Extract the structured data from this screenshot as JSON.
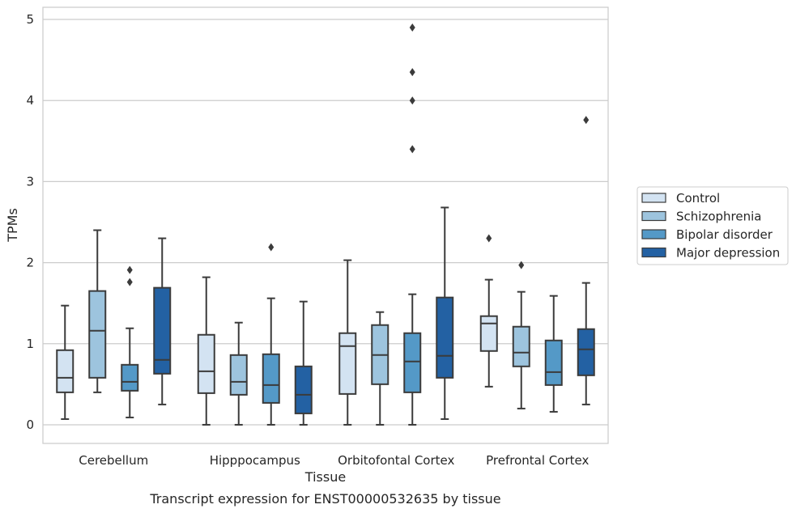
{
  "chart_data": {
    "type": "boxplot",
    "title": "",
    "xlabel": "Tissue",
    "ylabel": "TPMs",
    "caption": "Transcript expression for ENST00000532635 by tissue",
    "ylim": [
      -0.23,
      5.15
    ],
    "yticks": [
      0,
      1,
      2,
      3,
      4,
      5
    ],
    "grid": "horizontal",
    "legend_position": "right",
    "categories": [
      "Cerebellum",
      "Hipppocampus",
      "Orbitofontal Cortex",
      "Prefrontal Cortex"
    ],
    "series": [
      {
        "name": "Control",
        "color": "#d3e3f2",
        "boxes": [
          {
            "whisker_low": 0.07,
            "q1": 0.4,
            "median": 0.58,
            "q3": 0.92,
            "whisker_high": 1.47,
            "outliers": []
          },
          {
            "whisker_low": 0.0,
            "q1": 0.39,
            "median": 0.66,
            "q3": 1.11,
            "whisker_high": 1.82,
            "outliers": []
          },
          {
            "whisker_low": 0.0,
            "q1": 0.38,
            "median": 0.97,
            "q3": 1.13,
            "whisker_high": 2.03,
            "outliers": []
          },
          {
            "whisker_low": 0.47,
            "q1": 0.91,
            "median": 1.25,
            "q3": 1.34,
            "whisker_high": 1.79,
            "outliers": [
              2.3
            ]
          }
        ]
      },
      {
        "name": "Schizophrenia",
        "color": "#9dc4de",
        "boxes": [
          {
            "whisker_low": 0.4,
            "q1": 0.58,
            "median": 1.16,
            "q3": 1.65,
            "whisker_high": 2.4,
            "outliers": []
          },
          {
            "whisker_low": 0.0,
            "q1": 0.37,
            "median": 0.53,
            "q3": 0.86,
            "whisker_high": 1.26,
            "outliers": []
          },
          {
            "whisker_low": 0.0,
            "q1": 0.5,
            "median": 0.86,
            "q3": 1.23,
            "whisker_high": 1.39,
            "outliers": []
          },
          {
            "whisker_low": 0.2,
            "q1": 0.72,
            "median": 0.89,
            "q3": 1.21,
            "whisker_high": 1.64,
            "outliers": [
              1.97
            ]
          }
        ]
      },
      {
        "name": "Bipolar disorder",
        "color": "#5499c7",
        "boxes": [
          {
            "whisker_low": 0.09,
            "q1": 0.42,
            "median": 0.53,
            "q3": 0.74,
            "whisker_high": 1.19,
            "outliers": [
              1.76,
              1.91
            ]
          },
          {
            "whisker_low": 0.0,
            "q1": 0.27,
            "median": 0.49,
            "q3": 0.87,
            "whisker_high": 1.56,
            "outliers": [
              2.19
            ]
          },
          {
            "whisker_low": 0.0,
            "q1": 0.4,
            "median": 0.78,
            "q3": 1.13,
            "whisker_high": 1.61,
            "outliers": [
              3.4,
              4.0,
              4.35,
              4.9
            ]
          },
          {
            "whisker_low": 0.16,
            "q1": 0.49,
            "median": 0.65,
            "q3": 1.04,
            "whisker_high": 1.59,
            "outliers": []
          }
        ]
      },
      {
        "name": "Major depression",
        "color": "#2361a3",
        "boxes": [
          {
            "whisker_low": 0.25,
            "q1": 0.63,
            "median": 0.8,
            "q3": 1.69,
            "whisker_high": 2.3,
            "outliers": []
          },
          {
            "whisker_low": 0.0,
            "q1": 0.14,
            "median": 0.37,
            "q3": 0.72,
            "whisker_high": 1.52,
            "outliers": []
          },
          {
            "whisker_low": 0.07,
            "q1": 0.58,
            "median": 0.85,
            "q3": 1.57,
            "whisker_high": 2.68,
            "outliers": []
          },
          {
            "whisker_low": 0.25,
            "q1": 0.61,
            "median": 0.93,
            "q3": 1.18,
            "whisker_high": 1.75,
            "outliers": [
              3.76
            ]
          }
        ]
      }
    ]
  }
}
